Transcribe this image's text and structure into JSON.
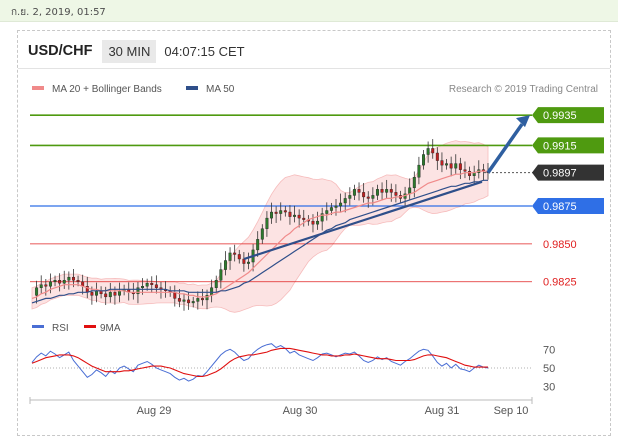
{
  "header": {
    "datestamp": "ก.ย. 2, 2019, 01:57",
    "pair": "USD/CHF",
    "timeframe": "30 MIN",
    "time": "04:07:15 CET"
  },
  "legend": {
    "ma20_label": "MA 20 + Bollinger Bands",
    "ma50_label": "MA 50",
    "credit": "Research © 2019 Trading Central",
    "ma20_color": "#f08a8a",
    "ma50_color": "#2f4f8a"
  },
  "chart_data": [
    {
      "type": "line",
      "title": "USD/CHF",
      "y_range": [
        0.9805,
        0.9945
      ],
      "x_labels": [
        "Aug 29",
        "Aug 30",
        "Aug 31",
        "Sep 10"
      ],
      "last_price": 0.9897,
      "levels": [
        {
          "label": "0.9935",
          "value": 0.9935,
          "kind": "resistance",
          "color": "#4f9a10"
        },
        {
          "label": "0.9915",
          "value": 0.9915,
          "kind": "resistance",
          "color": "#4f9a10"
        },
        {
          "label": "0.9897",
          "value": 0.9897,
          "kind": "last",
          "color": "#333333"
        },
        {
          "label": "0.9875",
          "value": 0.9875,
          "kind": "pivot",
          "color": "#2f6fe6"
        },
        {
          "label": "0.9850",
          "value": 0.985,
          "kind": "support",
          "color": "#e02020"
        },
        {
          "label": "0.9825",
          "value": 0.9825,
          "kind": "support",
          "color": "#e02020"
        }
      ],
      "series": [
        {
          "name": "USD/CHF",
          "values": [
            0.9816,
            0.9821,
            0.9823,
            0.9822,
            0.9825,
            0.9826,
            0.9824,
            0.9826,
            0.9828,
            0.9826,
            0.9825,
            0.9822,
            0.9818,
            0.9816,
            0.9819,
            0.9817,
            0.9815,
            0.9818,
            0.9816,
            0.9819,
            0.982,
            0.9818,
            0.9817,
            0.9821,
            0.9822,
            0.9824,
            0.9823,
            0.9821,
            0.982,
            0.9819,
            0.9818,
            0.9814,
            0.9812,
            0.9813,
            0.9811,
            0.9812,
            0.9814,
            0.9813,
            0.9816,
            0.9821,
            0.9826,
            0.9833,
            0.9839,
            0.9844,
            0.9843,
            0.984,
            0.9837,
            0.9838,
            0.9846,
            0.9853,
            0.986,
            0.9867,
            0.9871,
            0.987,
            0.9872,
            0.9871,
            0.9868,
            0.9869,
            0.9867,
            0.9866,
            0.9865,
            0.9863,
            0.9865,
            0.987,
            0.9872,
            0.9874,
            0.9875,
            0.9877,
            0.988,
            0.9882,
            0.9886,
            0.9884,
            0.9881,
            0.988,
            0.9882,
            0.9886,
            0.9884,
            0.9886,
            0.9884,
            0.9882,
            0.988,
            0.9883,
            0.9887,
            0.9894,
            0.9902,
            0.9909,
            0.9913,
            0.991,
            0.9905,
            0.9902,
            0.9903,
            0.99,
            0.9903,
            0.9899,
            0.9898,
            0.9895,
            0.9897,
            0.9899,
            0.9898,
            0.9897
          ]
        },
        {
          "name": "MA 20",
          "values": [
            0.9814,
            0.9815,
            0.9817,
            0.9818,
            0.982,
            0.9821,
            0.9822,
            0.9823,
            0.9823,
            0.9823,
            0.9823,
            0.9822,
            0.9821,
            0.982,
            0.982,
            0.9819,
            0.9819,
            0.9819,
            0.9819,
            0.9819,
            0.9819,
            0.9818,
            0.9818,
            0.9818,
            0.9818,
            0.9818,
            0.9818,
            0.9818,
            0.9818,
            0.9818,
            0.9818,
            0.9818,
            0.9817,
            0.9817,
            0.9816,
            0.9816,
            0.9815,
            0.9815,
            0.9815,
            0.9816,
            0.9817,
            0.9819,
            0.9821,
            0.9823,
            0.9825,
            0.9827,
            0.9829,
            0.9831,
            0.9834,
            0.9837,
            0.984,
            0.9843,
            0.9846,
            0.9849,
            0.9852,
            0.9855,
            0.9857,
            0.986,
            0.9862,
            0.9864,
            0.9866,
            0.9867,
            0.9868,
            0.9869,
            0.9869,
            0.987,
            0.9871,
            0.9871,
            0.9872,
            0.9873,
            0.9874,
            0.9875,
            0.9876,
            0.9877,
            0.9877,
            0.9878,
            0.9879,
            0.988,
            0.988,
            0.9881,
            0.9881,
            0.9882,
            0.9883,
            0.9884,
            0.9886,
            0.9888,
            0.989,
            0.9891,
            0.9892,
            0.9893,
            0.9894,
            0.9895,
            0.9896,
            0.9896,
            0.9897,
            0.9897,
            0.9897,
            0.9898,
            0.9898,
            0.9898
          ]
        },
        {
          "name": "MA 50",
          "values": [
            0.9811,
            0.9812,
            0.9813,
            0.9814,
            0.9814,
            0.9815,
            0.9816,
            0.9816,
            0.9817,
            0.9817,
            0.9818,
            0.9818,
            0.9818,
            0.9819,
            0.9819,
            0.9819,
            0.9819,
            0.982,
            0.982,
            0.982,
            0.982,
            0.982,
            0.982,
            0.982,
            0.982,
            0.982,
            0.982,
            0.982,
            0.982,
            0.982,
            0.9819,
            0.9819,
            0.9819,
            0.9819,
            0.9818,
            0.9818,
            0.9818,
            0.9818,
            0.9818,
            0.9818,
            0.9818,
            0.9819,
            0.9819,
            0.982,
            0.9821,
            0.9822,
            0.9824,
            0.9825,
            0.9827,
            0.9829,
            0.9831,
            0.9833,
            0.9835,
            0.9837,
            0.9839,
            0.9841,
            0.9843,
            0.9845,
            0.9847,
            0.9849,
            0.9851,
            0.9853,
            0.9855,
            0.9857,
            0.9859,
            0.986,
            0.9862,
            0.9863,
            0.9864,
            0.9866,
            0.9867,
            0.9868,
            0.9869,
            0.987,
            0.9871,
            0.9872,
            0.9873,
            0.9874,
            0.9875,
            0.9876,
            0.9877,
            0.9878,
            0.9879,
            0.988,
            0.9881,
            0.9882,
            0.9883,
            0.9884,
            0.9885,
            0.9886,
            0.9887,
            0.9888,
            0.9888,
            0.9889,
            0.989,
            0.989,
            0.9891,
            0.9891,
            0.9892,
            0.9892
          ]
        }
      ]
    },
    {
      "type": "line",
      "title": "RSI",
      "y_range": [
        20,
        80
      ],
      "y_ticks": [
        70,
        50,
        30
      ],
      "series": [
        {
          "name": "RSI",
          "color": "#4a6ed4",
          "values": [
            56,
            62,
            66,
            63,
            68,
            65,
            61,
            64,
            67,
            58,
            52,
            46,
            40,
            43,
            48,
            45,
            41,
            47,
            44,
            50,
            52,
            49,
            46,
            53,
            55,
            57,
            54,
            50,
            48,
            46,
            44,
            40,
            37,
            39,
            36,
            38,
            42,
            41,
            46,
            52,
            58,
            64,
            68,
            70,
            67,
            62,
            58,
            60,
            66,
            70,
            73,
            75,
            76,
            72,
            74,
            71,
            66,
            68,
            64,
            62,
            60,
            58,
            61,
            65,
            66,
            64,
            62,
            64,
            66,
            65,
            67,
            63,
            58,
            56,
            58,
            62,
            59,
            61,
            57,
            55,
            53,
            57,
            60,
            64,
            68,
            70,
            69,
            63,
            56,
            52,
            55,
            50,
            54,
            49,
            48,
            46,
            50,
            53,
            51,
            50
          ]
        },
        {
          "name": "9MA",
          "color": "#e01010",
          "values": [
            55,
            57,
            59,
            61,
            62,
            63,
            64,
            64,
            64,
            63,
            61,
            58,
            55,
            52,
            50,
            48,
            46,
            46,
            46,
            46,
            47,
            47,
            48,
            49,
            50,
            51,
            52,
            52,
            52,
            51,
            50,
            48,
            46,
            44,
            43,
            42,
            41,
            41,
            42,
            44,
            46,
            49,
            53,
            57,
            60,
            62,
            63,
            64,
            64,
            65,
            66,
            67,
            69,
            70,
            71,
            71,
            71,
            70,
            69,
            68,
            67,
            66,
            65,
            64,
            64,
            63,
            63,
            63,
            64,
            64,
            65,
            64,
            63,
            62,
            61,
            60,
            60,
            60,
            59,
            58,
            58,
            58,
            58,
            59,
            61,
            63,
            64,
            64,
            63,
            62,
            61,
            59,
            57,
            55,
            53,
            52,
            51,
            51,
            51,
            51
          ]
        }
      ]
    }
  ]
}
